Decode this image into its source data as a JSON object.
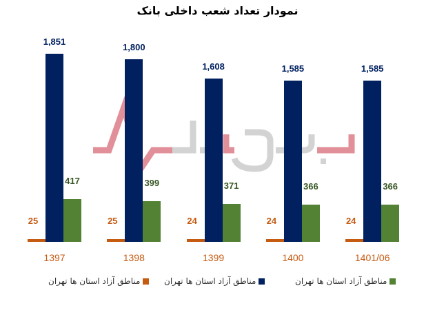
{
  "title": "نمودار تعداد شعب داخلی بانک",
  "colors": {
    "orange": "#c55a11",
    "navy": "#002060",
    "green": "#548235"
  },
  "legend": [
    {
      "label": "مناطق آزاد استان ها تهران",
      "color": "#c55a11"
    },
    {
      "label": "مناطق آزاد استان ها تهران",
      "color": "#002060"
    },
    {
      "label": "مناطق آزاد استان ها تهران",
      "color": "#548235"
    }
  ],
  "chart_data": {
    "type": "bar",
    "title": "نمودار تعداد شعب داخلی بانک",
    "categories": [
      "1397",
      "1398",
      "1399",
      "1400",
      "1401/06"
    ],
    "series": [
      {
        "name": "مناطق آزاد استان ها تهران",
        "color": "#c55a11",
        "values": [
          25,
          25,
          24,
          24,
          24
        ],
        "labels": [
          "25",
          "25",
          "24",
          "24",
          "24"
        ]
      },
      {
        "name": "مناطق آزاد استان ها تهران",
        "color": "#002060",
        "values": [
          1851,
          1800,
          1608,
          1585,
          1585
        ],
        "labels": [
          "1,851",
          "1,800",
          "1,608",
          "1,585",
          "1,585"
        ]
      },
      {
        "name": "مناطق آزاد استان ها تهران",
        "color": "#548235",
        "values": [
          417,
          399,
          371,
          366,
          366
        ],
        "labels": [
          "417",
          "399",
          "371",
          "366",
          "366"
        ]
      }
    ],
    "xlabel": "",
    "ylabel": "",
    "grid": false,
    "legend_position": "bottom",
    "data_labels": true
  }
}
